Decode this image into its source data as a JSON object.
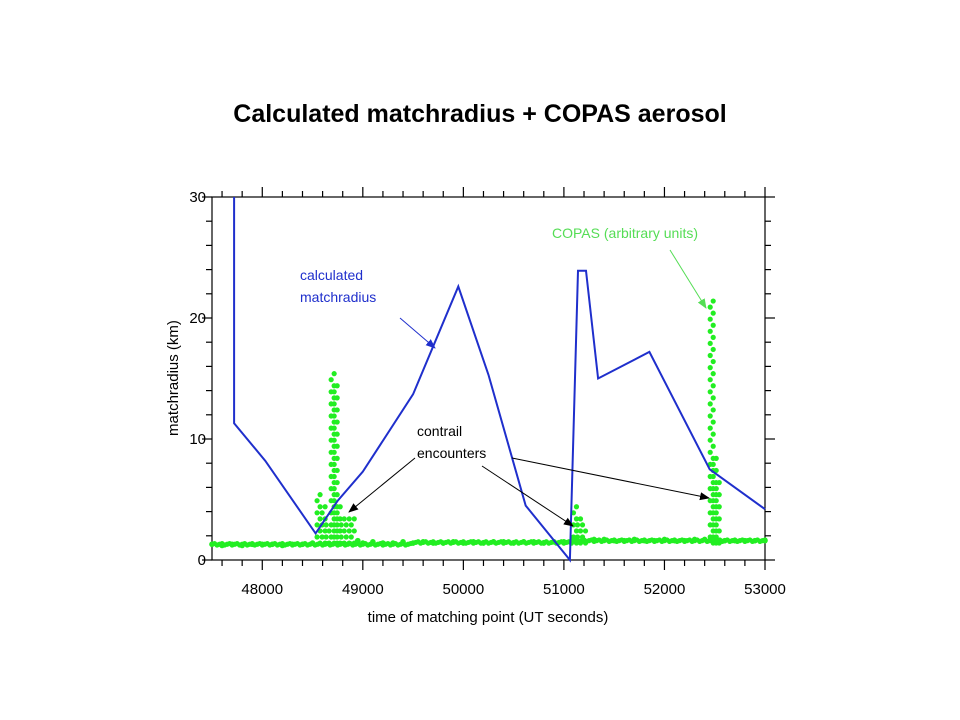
{
  "page": {
    "title": "Calculated matchradius + COPAS aerosol"
  },
  "chart_data": {
    "type": "line",
    "title": "Calculated matchradius + COPAS aerosol",
    "xlabel": "time of matching point (UT seconds)",
    "ylabel": "matchradius (km)",
    "xlim": [
      47500,
      53000
    ],
    "ylim": [
      0,
      30
    ],
    "x_ticks": [
      48000,
      49000,
      50000,
      51000,
      52000,
      53000
    ],
    "y_ticks": [
      0,
      10,
      20,
      30
    ],
    "grid": false,
    "colors": {
      "matchradius": "#1f2fcc",
      "copas": "#22ee22",
      "annotation_copas": "#55dd55"
    },
    "series": [
      {
        "name": "calculated matchradius",
        "style": "line",
        "x": [
          47720,
          47720,
          48030,
          48530,
          48750,
          49000,
          49500,
          49950,
          50250,
          50620,
          51060,
          51140,
          51220,
          51340,
          51850,
          52450,
          53000
        ],
        "y": [
          30,
          11.3,
          8.2,
          2.2,
          4.9,
          7.3,
          13.7,
          22.6,
          15.3,
          4.5,
          0,
          23.9,
          23.9,
          15,
          17.2,
          7.5,
          4.2
        ]
      },
      {
        "name": "COPAS (arbitrary units)",
        "style": "points",
        "baseline": 1.4,
        "x": [
          47500,
          47600,
          47700,
          47800,
          47900,
          48000,
          48100,
          48200,
          48300,
          48400,
          48500,
          48560,
          48610,
          48650,
          48700,
          48730,
          48760,
          48800,
          48850,
          48900,
          48950,
          49000,
          49100,
          49200,
          49300,
          49400,
          49500,
          49600,
          49700,
          49800,
          49900,
          50000,
          50100,
          50200,
          50300,
          50400,
          50500,
          50600,
          50700,
          50800,
          50900,
          51000,
          51080,
          51110,
          51150,
          51200,
          51300,
          51400,
          51500,
          51600,
          51700,
          51800,
          51900,
          52000,
          52100,
          52200,
          52300,
          52400,
          52470,
          52500,
          52530,
          52600,
          52700,
          52800,
          52900,
          53000
        ],
        "y": [
          1.3,
          1.2,
          1.3,
          1.2,
          1.3,
          1.3,
          1.3,
          1.2,
          1.3,
          1.3,
          1.4,
          5.6,
          4.5,
          3.2,
          15.5,
          14.8,
          4.8,
          3.7,
          3.8,
          3.5,
          1.6,
          1.4,
          1.5,
          1.4,
          1.4,
          1.5,
          1.4,
          1.5,
          1.4,
          1.4,
          1.5,
          1.4,
          1.5,
          1.4,
          1.5,
          1.5,
          1.4,
          1.5,
          1.5,
          1.4,
          1.5,
          1.5,
          1.6,
          4.6,
          3.4,
          3.0,
          1.7,
          1.7,
          1.6,
          1.6,
          1.7,
          1.6,
          1.6,
          1.7,
          1.6,
          1.6,
          1.7,
          1.7,
          21.8,
          8.4,
          6.5,
          1.6,
          1.6,
          1.6,
          1.6,
          1.6
        ]
      }
    ],
    "annotations": [
      {
        "text": "calculated matchradius",
        "lines": [
          "calculated",
          "matchradius"
        ],
        "color": "#1f2fcc"
      },
      {
        "text": "COPAS (arbitrary units)",
        "lines": [
          "COPAS (arbitrary units)"
        ],
        "color": "#55dd55"
      },
      {
        "text": "contrail encounters",
        "lines": [
          "contrail",
          "encounters"
        ],
        "color": "#000000"
      }
    ]
  }
}
